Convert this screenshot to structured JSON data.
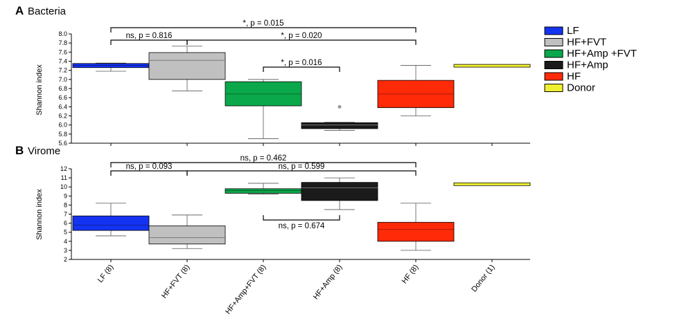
{
  "colors": {
    "LF": "#1433f0",
    "HF+FVT": "#c0c0c0",
    "HF+Amp+FVT": "#0aa84a",
    "HF+Amp": "#1b1b1b",
    "HF": "#ff2a08",
    "Donor": "#f0f032"
  },
  "legend": {
    "placement": "right",
    "items": [
      {
        "label": "LF",
        "key": "LF"
      },
      {
        "label": "HF+FVT",
        "key": "HF+FVT"
      },
      {
        "label": "HF+Amp +FVT",
        "key": "HF+Amp+FVT"
      },
      {
        "label": "HF+Amp",
        "key": "HF+Amp"
      },
      {
        "label": "HF",
        "key": "HF"
      },
      {
        "label": "Donor",
        "key": "Donor"
      }
    ]
  },
  "chart_data": [
    {
      "type": "box",
      "panel_letter": "A",
      "title": "Bacteria",
      "ylabel": "Shannon index",
      "ylim": [
        5.6,
        8.0
      ],
      "yticks": [
        "5.6",
        "5.8",
        "6.0",
        "6.2",
        "6.4",
        "6.6",
        "6.8",
        "7.0",
        "7.2",
        "7.4",
        "7.6",
        "7.8",
        "8.0"
      ],
      "categories": [
        "LF (8)",
        "HF+FVT (8)",
        "HF+Amp+FVT (8)",
        "HF+Amp (8)",
        "HF (8)",
        "Donor (1)"
      ],
      "boxes": [
        {
          "key": "LF",
          "whisker_low": 7.18,
          "q1": 7.26,
          "median": 7.31,
          "q3": 7.35,
          "whisker_high": 7.36,
          "outliers": []
        },
        {
          "key": "HF+FVT",
          "whisker_low": 6.75,
          "q1": 7.0,
          "median": 7.42,
          "q3": 7.59,
          "whisker_high": 7.73,
          "outliers": []
        },
        {
          "key": "HF+Amp+FVT",
          "whisker_low": 5.7,
          "q1": 6.42,
          "median": 6.68,
          "q3": 6.95,
          "whisker_high": 7.0,
          "outliers": []
        },
        {
          "key": "HF+Amp",
          "whisker_low": 5.88,
          "q1": 5.92,
          "median": 6.0,
          "q3": 6.05,
          "whisker_high": 6.06,
          "outliers": [
            6.4
          ]
        },
        {
          "key": "HF",
          "whisker_low": 6.2,
          "q1": 6.38,
          "median": 6.68,
          "q3": 6.98,
          "whisker_high": 7.31,
          "outliers": []
        },
        {
          "key": "Donor",
          "whisker_low": 7.3,
          "q1": 7.3,
          "median": 7.3,
          "q3": 7.3,
          "whisker_high": 7.3,
          "outliers": []
        }
      ],
      "annotations": [
        {
          "text": "*, p = 0.015",
          "from": 0,
          "to": 4
        },
        {
          "text": "ns, p = 0.816",
          "from": 0,
          "to": 1
        },
        {
          "text": "*, p = 0.020",
          "from": 1,
          "to": 4
        },
        {
          "text": "*, p = 0.016",
          "from": 2,
          "to": 3
        }
      ]
    },
    {
      "type": "box",
      "panel_letter": "B",
      "title": "Virome",
      "ylabel": "Shannon index",
      "ylim": [
        2,
        12
      ],
      "yticks": [
        "2",
        "3",
        "4",
        "5",
        "6",
        "7",
        "8",
        "9",
        "10",
        "11",
        "12"
      ],
      "categories": [
        "LF (8)",
        "HF+FVT (8)",
        "HF+Amp+FVT (8)",
        "HF+Amp (8)",
        "HF (8)",
        "Donor (1)"
      ],
      "boxes": [
        {
          "key": "LF",
          "whisker_low": 4.6,
          "q1": 5.2,
          "median": 5.8,
          "q3": 6.8,
          "whisker_high": 8.2,
          "outliers": []
        },
        {
          "key": "HF+FVT",
          "whisker_low": 3.2,
          "q1": 3.7,
          "median": 4.4,
          "q3": 5.7,
          "whisker_high": 6.9,
          "outliers": []
        },
        {
          "key": "HF+Amp+FVT",
          "whisker_low": 9.2,
          "q1": 9.3,
          "median": 9.6,
          "q3": 9.8,
          "whisker_high": 10.4,
          "outliers": []
        },
        {
          "key": "HF+Amp",
          "whisker_low": 7.5,
          "q1": 8.5,
          "median": 9.9,
          "q3": 10.5,
          "whisker_high": 11.0,
          "outliers": []
        },
        {
          "key": "HF",
          "whisker_low": 3.0,
          "q1": 4.0,
          "median": 5.3,
          "q3": 6.1,
          "whisker_high": 8.2,
          "outliers": []
        },
        {
          "key": "Donor",
          "whisker_low": 10.3,
          "q1": 10.3,
          "median": 10.3,
          "q3": 10.3,
          "whisker_high": 10.3,
          "outliers": []
        }
      ],
      "annotations": [
        {
          "text": "ns, p = 0.462",
          "from": 0,
          "to": 4
        },
        {
          "text": "ns, p = 0.093",
          "from": 0,
          "to": 1
        },
        {
          "text": "ns, p = 0.599",
          "from": 1,
          "to": 4
        },
        {
          "text": "ns, p = 0.674",
          "from": 2,
          "to": 3,
          "below": true
        }
      ]
    }
  ]
}
